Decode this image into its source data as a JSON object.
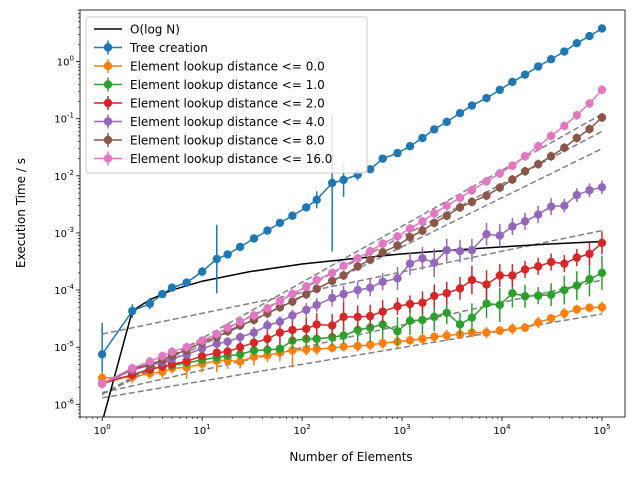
{
  "chart_data": {
    "type": "line",
    "xlabel": "Number of Elements",
    "ylabel": "Execution Time / s",
    "xscale": "log",
    "yscale": "log",
    "xlim": [
      0.6,
      170000
    ],
    "ylim": [
      6e-07,
      8
    ],
    "x_ticks": [
      1,
      10,
      100,
      1000,
      10000,
      100000
    ],
    "x_tick_labels": [
      "10^0",
      "10^1",
      "10^2",
      "10^3",
      "10^4",
      "10^5"
    ],
    "y_ticks": [
      1e-06,
      1e-05,
      0.0001,
      0.001,
      0.01,
      0.1,
      1
    ],
    "y_tick_labels": [
      "10^-6",
      "10^-5",
      "10^-4",
      "10^-3",
      "10^-2",
      "10^-1",
      "10^0"
    ],
    "grid": false,
    "legend_position": "top-left",
    "reference_line": {
      "name": "O(log N)",
      "color": "#000000",
      "x": [
        1,
        2,
        3,
        5,
        10,
        30,
        100,
        300,
        1000,
        3000,
        10000,
        30000,
        100000
      ],
      "y": [
        0,
        4.3e-05,
        6.8e-05,
        0.0001,
        0.000143,
        0.00021,
        0.000286,
        0.00035,
        0.00043,
        0.000495,
        0.00057,
        0.00064,
        0.00071
      ]
    },
    "series": [
      {
        "name": "Tree creation",
        "color": "#1f77b4",
        "x": [
          1,
          2,
          3,
          4,
          5,
          7,
          10,
          14,
          18,
          24,
          33,
          45,
          60,
          80,
          110,
          140,
          200,
          260,
          360,
          480,
          640,
          900,
          1200,
          1600,
          2100,
          2800,
          3800,
          5000,
          7000,
          9500,
          12700,
          17000,
          23000,
          31000,
          42000,
          56000,
          75000,
          100000
        ],
        "y": [
          7.5e-06,
          4.3e-05,
          5.8e-05,
          8.5e-05,
          0.00011,
          0.000135,
          0.00021,
          0.00035,
          0.00042,
          0.00057,
          0.0008,
          0.0011,
          0.0015,
          0.002,
          0.0028,
          0.0038,
          0.0075,
          0.0085,
          0.0105,
          0.013,
          0.02,
          0.025,
          0.033,
          0.046,
          0.065,
          0.088,
          0.125,
          0.17,
          0.23,
          0.32,
          0.44,
          0.59,
          0.82,
          1.1,
          1.5,
          2.1,
          2.8,
          3.8
        ],
        "err": [
          0.55,
          0.12,
          0.1,
          0.06,
          0.05,
          0.05,
          0.08,
          0.6,
          0.05,
          0.04,
          0.04,
          0.04,
          0.04,
          0.04,
          0.04,
          0.15,
          1.2,
          0.3,
          0.1,
          0.05,
          0.04,
          0.04,
          0.03,
          0.03,
          0.03,
          0.03,
          0.03,
          0.03,
          0.03,
          0.03,
          0.03,
          0.03,
          0.03,
          0.03,
          0.03,
          0.03,
          0.03,
          0.03
        ]
      },
      {
        "name": "Element lookup distance <= 0.0",
        "color": "#ff7f0e",
        "x": [
          1,
          2,
          3,
          4,
          5,
          7,
          10,
          14,
          18,
          24,
          33,
          45,
          60,
          80,
          110,
          140,
          200,
          260,
          360,
          480,
          640,
          900,
          1200,
          1600,
          2100,
          2800,
          3800,
          5000,
          7000,
          9500,
          12700,
          17000,
          23000,
          31000,
          42000,
          56000,
          75000,
          100000
        ],
        "y": [
          2.9e-06,
          3e-06,
          3.5e-06,
          3.7e-06,
          4.3e-06,
          4.4e-06,
          5.1e-06,
          5.8e-06,
          5.9e-06,
          5.6e-06,
          6.8e-06,
          7.2e-06,
          8e-06,
          8.8e-06,
          9.1e-06,
          9.3e-06,
          9.7e-06,
          1.02e-05,
          1.05e-05,
          1.1e-05,
          1.18e-05,
          1.25e-05,
          1.32e-05,
          1.4e-05,
          1.52e-05,
          1.6e-05,
          1.68e-05,
          1.8e-05,
          1.8e-05,
          1.95e-05,
          2.1e-05,
          2.2e-05,
          2.7e-05,
          3.2e-05,
          3.9e-05,
          4.6e-05,
          4.9e-05,
          5e-05
        ],
        "err": [
          0.12,
          0.1,
          0.1,
          0.12,
          0.1,
          0.2,
          0.15,
          0.2,
          0.15,
          0.12,
          0.15,
          0.12,
          0.15,
          0.3,
          0.1,
          0.1,
          0.08,
          0.08,
          0.1,
          0.1,
          0.1,
          0.1,
          0.08,
          0.08,
          0.08,
          0.1,
          0.08,
          0.08,
          0.1,
          0.08,
          0.1,
          0.08,
          0.1,
          0.08,
          0.1,
          0.08,
          0.08,
          0.1
        ]
      },
      {
        "name": "Element lookup distance <= 1.0",
        "color": "#2ca02c",
        "x": [
          1,
          2,
          3,
          4,
          5,
          7,
          10,
          14,
          18,
          24,
          33,
          45,
          60,
          80,
          110,
          140,
          200,
          260,
          360,
          480,
          640,
          900,
          1200,
          1600,
          2100,
          2800,
          3800,
          5000,
          7000,
          9500,
          12700,
          17000,
          23000,
          31000,
          42000,
          56000,
          75000,
          100000
        ],
        "y": [
          2.3e-06,
          3.3e-06,
          4e-06,
          4.6e-06,
          4.8e-06,
          5.3e-06,
          6e-06,
          6.6e-06,
          7.1e-06,
          7.5e-06,
          8.8e-06,
          9e-06,
          9.4e-06,
          1.3e-05,
          1.4e-05,
          1.4e-05,
          1.5e-05,
          1.6e-05,
          2e-05,
          2.2e-05,
          2.5e-05,
          1.9e-05,
          2.9e-05,
          3e-05,
          3.4e-05,
          4e-05,
          2.5e-05,
          3.3e-05,
          5.8e-05,
          5.5e-05,
          8.8e-05,
          7.8e-05,
          8e-05,
          8.3e-05,
          0.0001,
          0.00012,
          0.000155,
          0.0002
        ],
        "err": [
          0.08,
          0.08,
          0.08,
          0.08,
          0.08,
          0.08,
          0.08,
          0.08,
          0.08,
          0.08,
          0.1,
          0.1,
          0.1,
          0.15,
          0.15,
          0.15,
          0.15,
          0.15,
          0.2,
          0.25,
          0.25,
          0.25,
          0.25,
          0.25,
          0.25,
          0.2,
          0.2,
          0.25,
          0.25,
          0.3,
          0.25,
          0.2,
          0.15,
          0.2,
          0.25,
          0.25,
          0.3,
          0.3
        ]
      },
      {
        "name": "Element lookup distance <= 2.0",
        "color": "#d62728",
        "x": [
          1,
          2,
          3,
          4,
          5,
          7,
          10,
          14,
          18,
          24,
          33,
          45,
          60,
          80,
          110,
          140,
          200,
          260,
          360,
          480,
          640,
          900,
          1200,
          1600,
          2100,
          2800,
          3800,
          5000,
          7000,
          9500,
          12700,
          17000,
          23000,
          31000,
          42000,
          56000,
          75000,
          100000
        ],
        "y": [
          2.3e-06,
          3.3e-06,
          4.1e-06,
          4.6e-06,
          5e-06,
          5.7e-06,
          7e-06,
          8e-06,
          8.4e-06,
          1e-05,
          1.2e-05,
          1.4e-05,
          1.8e-05,
          2e-05,
          2.1e-05,
          2.5e-05,
          2.4e-05,
          3.4e-05,
          3.4e-05,
          3.5e-05,
          4.2e-05,
          5.2e-05,
          5.7e-05,
          6e-05,
          7.9e-05,
          8.8e-05,
          0.000107,
          0.00015,
          0.000125,
          0.00018,
          0.00018,
          0.00023,
          0.00026,
          0.00031,
          0.00029,
          0.00037,
          0.00043,
          0.00067
        ],
        "err": [
          0.08,
          0.08,
          0.08,
          0.08,
          0.08,
          0.08,
          0.08,
          0.08,
          0.1,
          0.1,
          0.1,
          0.15,
          0.2,
          0.2,
          0.2,
          0.2,
          0.2,
          0.25,
          0.2,
          0.2,
          0.2,
          0.15,
          0.15,
          0.2,
          0.2,
          0.2,
          0.2,
          0.25,
          0.25,
          0.2,
          0.2,
          0.15,
          0.15,
          0.15,
          0.15,
          0.15,
          0.2,
          0.2
        ]
      },
      {
        "name": "Element lookup distance <= 4.0",
        "color": "#9467bd",
        "x": [
          1,
          2,
          3,
          4,
          5,
          7,
          10,
          14,
          18,
          24,
          33,
          45,
          60,
          80,
          110,
          140,
          200,
          260,
          360,
          480,
          640,
          900,
          1200,
          1600,
          2100,
          2800,
          3800,
          5000,
          7000,
          9500,
          12700,
          17000,
          23000,
          31000,
          42000,
          56000,
          75000,
          100000
        ],
        "y": [
          2.3e-06,
          4e-06,
          4.8e-06,
          5.5e-06,
          6.3e-06,
          7.4e-06,
          9.5e-06,
          1.15e-05,
          1.25e-05,
          1.5e-05,
          1.8e-05,
          2.4e-05,
          2.8e-05,
          3.6e-05,
          4.5e-05,
          5.5e-05,
          7.3e-05,
          8.5e-05,
          0.0001,
          0.00011,
          0.00014,
          0.00016,
          0.00029,
          0.00036,
          0.0003,
          0.0005,
          0.00048,
          0.0005,
          0.00095,
          0.0009,
          0.0013,
          0.0016,
          0.0021,
          0.0029,
          0.003,
          0.0046,
          0.0056,
          0.0063
        ],
        "err": [
          0.08,
          0.08,
          0.08,
          0.08,
          0.08,
          0.08,
          0.08,
          0.08,
          0.08,
          0.08,
          0.1,
          0.1,
          0.1,
          0.1,
          0.12,
          0.12,
          0.15,
          0.15,
          0.15,
          0.15,
          0.15,
          0.2,
          0.2,
          0.2,
          0.25,
          0.2,
          0.2,
          0.2,
          0.2,
          0.2,
          0.15,
          0.15,
          0.15,
          0.15,
          0.12,
          0.12,
          0.12,
          0.12
        ]
      },
      {
        "name": "Element lookup distance <= 8.0",
        "color": "#8c564b",
        "x": [
          1,
          2,
          3,
          4,
          5,
          7,
          10,
          14,
          18,
          24,
          33,
          45,
          60,
          80,
          110,
          140,
          200,
          260,
          360,
          480,
          640,
          900,
          1200,
          1600,
          2100,
          2800,
          3800,
          5000,
          7000,
          9500,
          12700,
          17000,
          23000,
          31000,
          42000,
          56000,
          75000,
          100000
        ],
        "y": [
          2.3e-06,
          4.2e-06,
          5e-06,
          6e-06,
          7.2e-06,
          8.9e-06,
          1.2e-05,
          1.5e-05,
          1.9e-05,
          2.4e-05,
          3e-05,
          3.9e-05,
          5e-05,
          6.3e-05,
          8.4e-05,
          0.000105,
          0.000145,
          0.00018,
          0.00026,
          0.00034,
          0.00046,
          0.0006,
          0.00084,
          0.0011,
          0.0015,
          0.002,
          0.0028,
          0.0035,
          0.0045,
          0.0062,
          0.0086,
          0.012,
          0.016,
          0.022,
          0.031,
          0.046,
          0.066,
          0.105
        ],
        "err": [
          0.08,
          0.08,
          0.08,
          0.08,
          0.08,
          0.08,
          0.08,
          0.08,
          0.08,
          0.08,
          0.08,
          0.08,
          0.08,
          0.08,
          0.08,
          0.08,
          0.08,
          0.08,
          0.08,
          0.08,
          0.08,
          0.08,
          0.08,
          0.08,
          0.08,
          0.08,
          0.08,
          0.08,
          0.08,
          0.08,
          0.08,
          0.08,
          0.08,
          0.08,
          0.08,
          0.08,
          0.08,
          0.08
        ]
      },
      {
        "name": "Element lookup distance <= 16.0",
        "color": "#e377c2",
        "x": [
          1,
          2,
          3,
          4,
          5,
          7,
          10,
          14,
          18,
          24,
          33,
          45,
          60,
          80,
          110,
          140,
          200,
          260,
          360,
          480,
          640,
          900,
          1200,
          1600,
          2100,
          2800,
          3800,
          5000,
          7000,
          9500,
          12700,
          17000,
          23000,
          31000,
          42000,
          56000,
          75000,
          100000
        ],
        "y": [
          2.3e-06,
          4.3e-06,
          5.6e-06,
          7e-06,
          8.3e-06,
          1e-05,
          1.3e-05,
          1.7e-05,
          2.2e-05,
          2.8e-05,
          3.6e-05,
          4.8e-05,
          6.4e-05,
          8.6e-05,
          0.000115,
          0.00015,
          0.0002,
          0.000265,
          0.00036,
          0.00048,
          0.00065,
          0.00087,
          0.0012,
          0.0016,
          0.0022,
          0.003,
          0.0041,
          0.0056,
          0.008,
          0.011,
          0.015,
          0.022,
          0.033,
          0.05,
          0.075,
          0.115,
          0.185,
          0.32
        ],
        "err": [
          0.08,
          0.08,
          0.08,
          0.08,
          0.08,
          0.08,
          0.08,
          0.08,
          0.08,
          0.08,
          0.08,
          0.08,
          0.08,
          0.08,
          0.08,
          0.08,
          0.08,
          0.08,
          0.08,
          0.08,
          0.08,
          0.08,
          0.08,
          0.08,
          0.08,
          0.08,
          0.08,
          0.08,
          0.08,
          0.08,
          0.08,
          0.08,
          0.08,
          0.08,
          0.08,
          0.08,
          0.08,
          0.08
        ]
      }
    ],
    "fit_lines": [
      {
        "color": "#808080",
        "x": [
          1,
          100000
        ],
        "y": [
          1.7e-05,
          0.0011
        ]
      },
      {
        "color": "#808080",
        "x": [
          1,
          100000
        ],
        "y": [
          1.6e-06,
          0.00015
        ]
      },
      {
        "color": "#808080",
        "x": [
          1,
          100000
        ],
        "y": [
          1.3e-06,
          3.8e-05
        ]
      },
      {
        "color": "#808080",
        "x": [
          1,
          100000
        ],
        "y": [
          1.5e-06,
          0.03
        ]
      },
      {
        "color": "#808080",
        "x": [
          1,
          100000
        ],
        "y": [
          1.5e-06,
          0.06
        ]
      },
      {
        "color": "#808080",
        "x": [
          1,
          100000
        ],
        "y": [
          1.5e-06,
          0.12
        ]
      }
    ]
  }
}
